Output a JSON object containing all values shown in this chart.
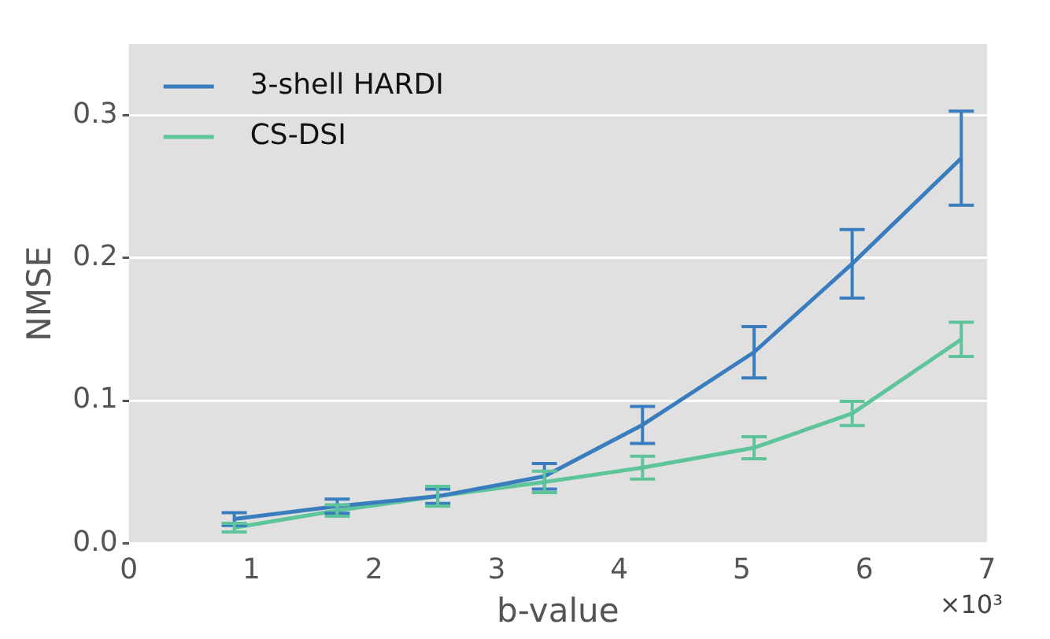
{
  "chart_data": {
    "type": "line",
    "xlabel": "b-value",
    "ylabel": "NMSE",
    "annotations": [
      "×10³"
    ],
    "x": [
      0.86,
      1.7,
      2.52,
      3.39,
      4.19,
      5.1,
      5.9,
      6.79
    ],
    "xlim": [
      0,
      7
    ],
    "xticks": [
      0,
      1,
      2,
      3,
      4,
      5,
      6,
      7
    ],
    "ylim": [
      0,
      0.35
    ],
    "yticks": [
      {
        "value": 0,
        "label": "0.0"
      },
      0.1,
      0.2,
      0.3
    ],
    "grid": "y",
    "legend": "top left",
    "line_style": "solid",
    "series": [
      {
        "name": "3-shell HARDI",
        "color": "#3a7dbf",
        "values": [
          0.017,
          0.026,
          0.033,
          0.047,
          0.083,
          0.134,
          0.196,
          0.27
        ],
        "errors": [
          0.0045,
          0.005,
          0.005,
          0.009,
          0.013,
          0.018,
          0.024,
          0.033
        ]
      },
      {
        "name": "CS-DSI",
        "color": "#5ec49a",
        "values": [
          0.011,
          0.023,
          0.033,
          0.043,
          0.053,
          0.067,
          0.091,
          0.143
        ],
        "errors": [
          0.003,
          0.004,
          0.007,
          0.0075,
          0.008,
          0.0077,
          0.0085,
          0.012
        ]
      }
    ]
  }
}
